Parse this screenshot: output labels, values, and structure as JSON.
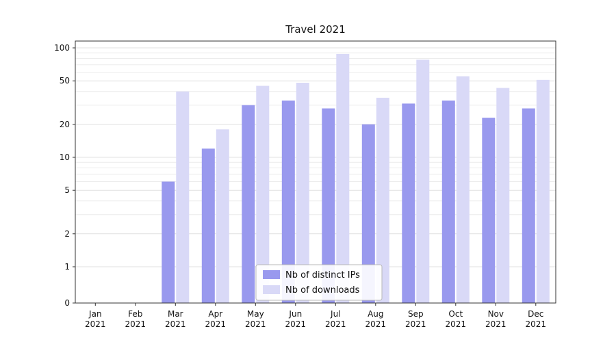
{
  "chart_data": {
    "type": "bar",
    "title": "Travel 2021",
    "categories": [
      "Jan",
      "Feb",
      "Mar",
      "Apr",
      "May",
      "Jun",
      "Jul",
      "Aug",
      "Sep",
      "Oct",
      "Nov",
      "Dec"
    ],
    "year_label": "2021",
    "series": [
      {
        "name": "Nb of distinct IPs",
        "color": "#9999ee",
        "values": [
          0,
          0,
          6,
          12,
          30,
          33,
          28,
          20,
          31,
          33,
          23,
          28
        ]
      },
      {
        "name": "Nb of downloads",
        "color": "#d9d9f7",
        "values": [
          0,
          0,
          40,
          18,
          45,
          48,
          88,
          35,
          78,
          55,
          43,
          51
        ]
      }
    ],
    "y_ticks": [
      0,
      1,
      2,
      5,
      10,
      20,
      50,
      100
    ],
    "y_scale": "symlog",
    "ylim": [
      0,
      100
    ],
    "grid": "horizontal-minor-log",
    "grid_color_minor": "#ececec",
    "grid_color_major": "#e0e0e0",
    "axis_color": "#333333",
    "legend_position": "lower-center",
    "legend_border_color": "#b8b8b8"
  }
}
